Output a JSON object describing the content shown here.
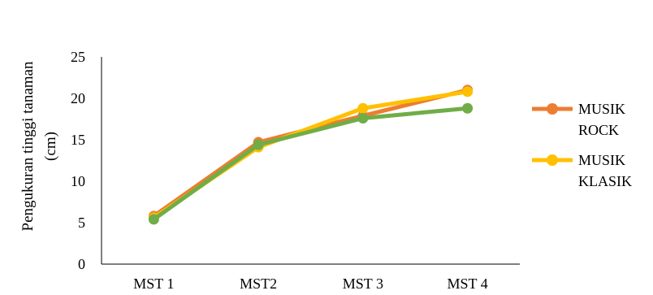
{
  "chart_data": {
    "type": "line",
    "title": "",
    "xlabel": "",
    "ylabel_lines": [
      "Pengukuran tinggi tanaman",
      "(cm)"
    ],
    "categories": [
      "MST 1",
      "MST2",
      "MST 3",
      "MST 4"
    ],
    "ylim": [
      0,
      25
    ],
    "yticks": [
      0,
      5,
      10,
      15,
      20,
      25
    ],
    "grid": false,
    "legend_position": "right",
    "series": [
      {
        "name_lines": [
          "MUSIK",
          "ROCK"
        ],
        "color": "#ED7D31",
        "legend": true,
        "values": [
          5.8,
          14.7,
          17.9,
          21.0
        ]
      },
      {
        "name_lines": [
          "MUSIK",
          "KLASIK"
        ],
        "color": "#FFC000",
        "legend": true,
        "values": [
          5.6,
          14.1,
          18.8,
          20.8
        ]
      },
      {
        "name_lines": [],
        "color": "#70AD47",
        "legend": false,
        "values": [
          5.4,
          14.4,
          17.6,
          18.8
        ]
      }
    ]
  }
}
